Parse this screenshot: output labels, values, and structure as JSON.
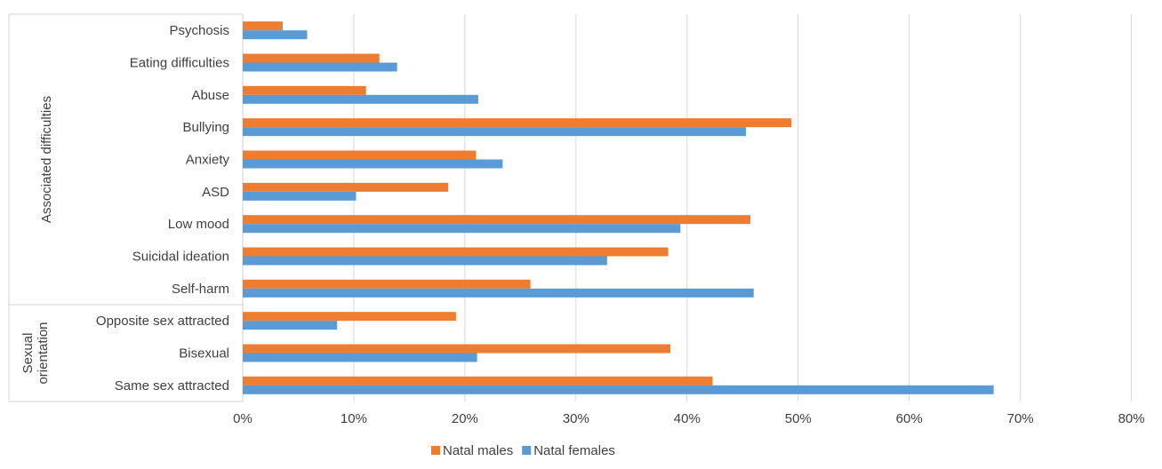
{
  "chart_data": {
    "type": "bar",
    "orientation": "horizontal",
    "categories": [
      "Psychosis",
      "Eating difficulties",
      "Abuse",
      "Bullying",
      "Anxiety",
      "ASD",
      "Low mood",
      "Suicidal ideation",
      "Self-harm",
      "Opposite sex attracted",
      "Bisexual",
      "Same sex attracted"
    ],
    "groups": [
      {
        "label": "Associated difficulties",
        "categories": [
          "Psychosis",
          "Eating difficulties",
          "Abuse",
          "Bullying",
          "Anxiety",
          "ASD",
          "Low mood",
          "Suicidal ideation",
          "Self-harm"
        ]
      },
      {
        "label": "Sexual orientation",
        "categories": [
          "Opposite sex attracted",
          "Bisexual",
          "Same sex attracted"
        ]
      }
    ],
    "series": [
      {
        "name": "Natal males",
        "color": "#ed7d31",
        "values": [
          3.6,
          12.3,
          11.1,
          49.4,
          21.0,
          18.5,
          45.7,
          38.3,
          25.9,
          19.2,
          38.5,
          42.3
        ]
      },
      {
        "name": "Natal females",
        "color": "#5b9bd5",
        "values": [
          5.8,
          13.9,
          21.2,
          45.3,
          23.4,
          10.2,
          39.4,
          32.8,
          46.0,
          8.5,
          21.1,
          67.6
        ]
      }
    ],
    "xlim": [
      0,
      80
    ],
    "xticks": [
      "0%",
      "10%",
      "20%",
      "30%",
      "40%",
      "50%",
      "60%",
      "70%",
      "80%"
    ],
    "grid": true,
    "legend_position": "bottom"
  }
}
